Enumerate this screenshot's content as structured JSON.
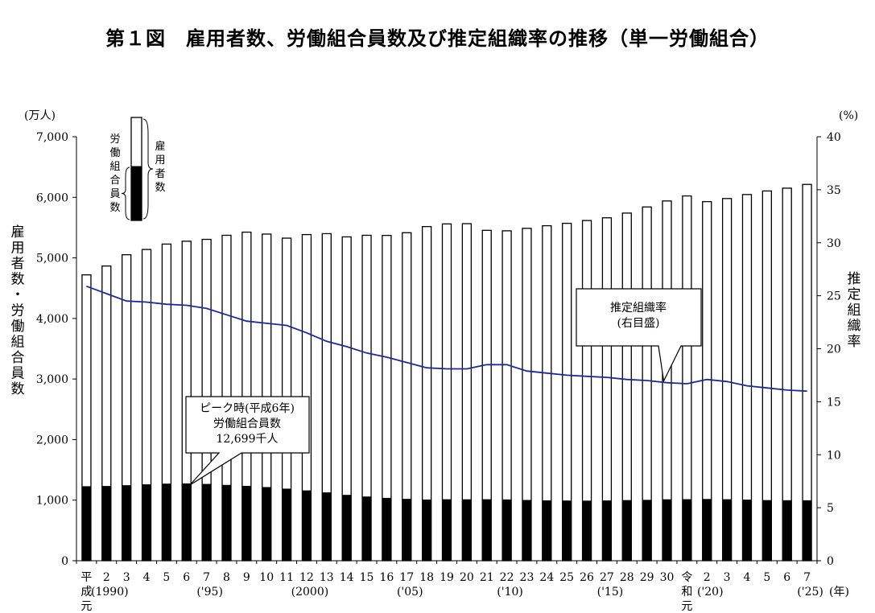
{
  "chart_data": {
    "type": "bar",
    "title": "第１図　雇用者数、労働組合員数及び推定組織率の推移（単一労働組合）",
    "left_unit": "(万人)",
    "right_unit": "(%)",
    "left_axis_label": "雇用者数・労働組合員数",
    "right_axis_label": "推定組織率",
    "x_unit": "(年)",
    "ylim": [
      0,
      7000
    ],
    "ylim_right": [
      0,
      40
    ],
    "yticks": [
      "0",
      "1,000",
      "2,000",
      "3,000",
      "4,000",
      "5,000",
      "6,000",
      "7,000"
    ],
    "yticks_right": [
      "0",
      "5",
      "10",
      "15",
      "20",
      "25",
      "30",
      "35",
      "40"
    ],
    "grid": false,
    "categories": [
      "平成元",
      "2",
      "3",
      "4",
      "5",
      "6",
      "7",
      "8",
      "9",
      "10",
      "11",
      "12",
      "13",
      "14",
      "15",
      "16",
      "17",
      "18",
      "19",
      "20",
      "21",
      "22",
      "23",
      "24",
      "25",
      "26",
      "27",
      "28",
      "29",
      "30",
      "令和元",
      "2",
      "3",
      "4",
      "5",
      "6",
      "7"
    ],
    "category_labels": [
      [
        "平",
        "成",
        "元"
      ],
      [
        "2"
      ],
      [
        "3"
      ],
      [
        "4"
      ],
      [
        "5"
      ],
      [
        "6"
      ],
      [
        "7"
      ],
      [
        "8"
      ],
      [
        "9"
      ],
      [
        "10"
      ],
      [
        "11"
      ],
      [
        "12"
      ],
      [
        "13"
      ],
      [
        "14"
      ],
      [
        "15"
      ],
      [
        "16"
      ],
      [
        "17"
      ],
      [
        "18"
      ],
      [
        "19"
      ],
      [
        "20"
      ],
      [
        "21"
      ],
      [
        "22"
      ],
      [
        "23"
      ],
      [
        "24"
      ],
      [
        "25"
      ],
      [
        "26"
      ],
      [
        "27"
      ],
      [
        "28"
      ],
      [
        "29"
      ],
      [
        "30"
      ],
      [
        "令",
        "和",
        "元"
      ],
      [
        "2"
      ],
      [
        "3"
      ],
      [
        "4"
      ],
      [
        "5"
      ],
      [
        "6"
      ],
      [
        "7"
      ]
    ],
    "year_annotations": [
      {
        "index": 1,
        "text": "(1990)"
      },
      {
        "index": 6,
        "text": "('95)"
      },
      {
        "index": 11,
        "text": "(2000)"
      },
      {
        "index": 16,
        "text": "('05)"
      },
      {
        "index": 21,
        "text": "('10)"
      },
      {
        "index": 26,
        "text": "('15)"
      },
      {
        "index": 31,
        "text": "('20)"
      },
      {
        "index": 36,
        "text": "('25)"
      }
    ],
    "series": [
      {
        "name": "雇用者数",
        "type": "bar",
        "color": "#ffffff",
        "values": [
          4720,
          4866,
          5052,
          5139,
          5228,
          5275,
          5306,
          5373,
          5425,
          5393,
          5326,
          5385,
          5400,
          5347,
          5373,
          5371,
          5416,
          5517,
          5561,
          5565,
          5455,
          5447,
          5488,
          5531,
          5571,
          5617,
          5662,
          5740,
          5841,
          5940,
          6023,
          5929,
          5980,
          6046,
          6105,
          6151,
          6213
        ]
      },
      {
        "name": "労働組合員数",
        "type": "bar",
        "color": "#000000",
        "values": [
          1223,
          1227,
          1240,
          1254,
          1266,
          1270,
          1261,
          1245,
          1229,
          1209,
          1183,
          1154,
          1121,
          1080,
          1053,
          1031,
          1014,
          1004,
          1008,
          1007,
          1008,
          1005,
          996,
          989,
          987,
          985,
          988,
          994,
          998,
          1007,
          1009,
          1012,
          1008,
          1002,
          994,
          992,
          991
        ]
      },
      {
        "name": "推定組織率",
        "type": "line",
        "axis": "right",
        "color": "#1c2aa0",
        "values": [
          25.9,
          25.2,
          24.5,
          24.4,
          24.2,
          24.1,
          23.8,
          23.2,
          22.6,
          22.4,
          22.2,
          21.5,
          20.7,
          20.2,
          19.6,
          19.2,
          18.7,
          18.2,
          18.1,
          18.1,
          18.5,
          18.5,
          17.9,
          17.7,
          17.5,
          17.4,
          17.3,
          17.1,
          17.0,
          16.8,
          16.7,
          17.1,
          16.9,
          16.5,
          16.3,
          16.1,
          16.0
        ]
      }
    ],
    "legend": {
      "position": "top-left",
      "inner_label": "労働組合員数",
      "outer_label": "雇用者数"
    },
    "annotations": [
      {
        "name": "peak-callout",
        "lines": [
          "ピーク時(平成6年)",
          "労働組合員数",
          "12,699千人"
        ],
        "index": 5
      },
      {
        "name": "rate-callout",
        "lines": [
          "推定組織率",
          "(右目盛)"
        ],
        "index": 29
      }
    ]
  }
}
